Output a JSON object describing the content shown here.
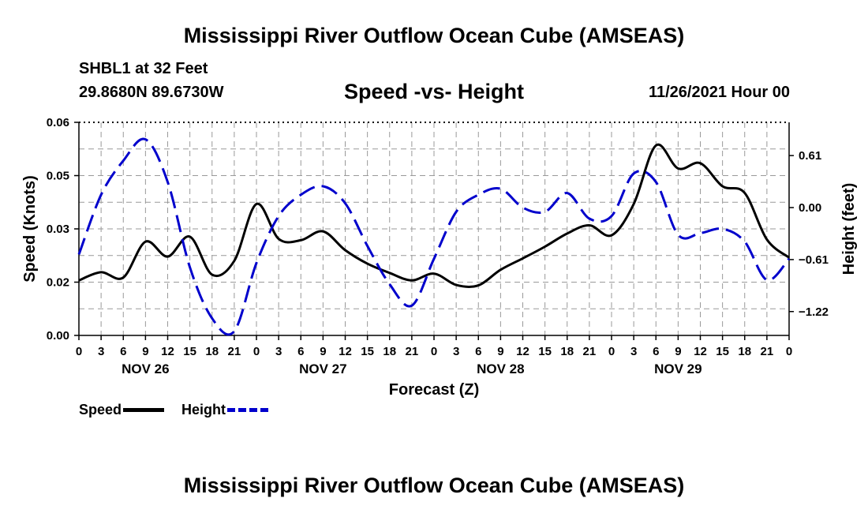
{
  "header": {
    "title": "Mississippi River Outflow Ocean Cube (AMSEAS)",
    "station": "SHBL1 at 32 Feet",
    "coordinates": "29.8680N  89.6730W",
    "subtitle": "Speed -vs- Height",
    "datetime": "11/26/2021 Hour 00"
  },
  "footer": {
    "title": "Mississippi River Outflow Ocean Cube (AMSEAS)"
  },
  "legend": {
    "speed_label": "Speed",
    "height_label": "Height"
  },
  "colors": {
    "speed": "#000000",
    "height": "#0000cc",
    "grid": "#999999"
  },
  "chart_data": {
    "type": "line",
    "title": "Speed -vs- Height",
    "xlabel": "Forecast (Z)",
    "ylabel": "Speed (Knots)",
    "y2label": "Height (feet)",
    "xlim": [
      0,
      96
    ],
    "ylim": [
      0,
      0.06
    ],
    "y2lim": [
      -1.5,
      1.0
    ],
    "yticks": [
      {
        "value": 0.0,
        "label": "0.00"
      },
      {
        "value": 0.015,
        "label": "0.02"
      },
      {
        "value": 0.03,
        "label": "0.03"
      },
      {
        "value": 0.045,
        "label": "0.05"
      },
      {
        "value": 0.06,
        "label": "0.06"
      }
    ],
    "y2ticks": [
      {
        "value": 0.61,
        "label": "0.61"
      },
      {
        "value": 0.0,
        "label": "0.00"
      },
      {
        "value": -0.61,
        "label": "−0.61"
      },
      {
        "value": -1.22,
        "label": "−1.22"
      }
    ],
    "xticks": [
      {
        "hour": 0,
        "label": "0"
      },
      {
        "hour": 3,
        "label": "3"
      },
      {
        "hour": 6,
        "label": "6"
      },
      {
        "hour": 9,
        "label": "9"
      },
      {
        "hour": 12,
        "label": "12"
      },
      {
        "hour": 15,
        "label": "15"
      },
      {
        "hour": 18,
        "label": "18"
      },
      {
        "hour": 21,
        "label": "21"
      },
      {
        "hour": 24,
        "label": "0"
      },
      {
        "hour": 27,
        "label": "3"
      },
      {
        "hour": 30,
        "label": "6"
      },
      {
        "hour": 33,
        "label": "9"
      },
      {
        "hour": 36,
        "label": "12"
      },
      {
        "hour": 39,
        "label": "15"
      },
      {
        "hour": 42,
        "label": "18"
      },
      {
        "hour": 45,
        "label": "21"
      },
      {
        "hour": 48,
        "label": "0"
      },
      {
        "hour": 51,
        "label": "3"
      },
      {
        "hour": 54,
        "label": "6"
      },
      {
        "hour": 57,
        "label": "9"
      },
      {
        "hour": 60,
        "label": "12"
      },
      {
        "hour": 63,
        "label": "15"
      },
      {
        "hour": 66,
        "label": "18"
      },
      {
        "hour": 69,
        "label": "21"
      },
      {
        "hour": 72,
        "label": "0"
      },
      {
        "hour": 75,
        "label": "3"
      },
      {
        "hour": 78,
        "label": "6"
      },
      {
        "hour": 81,
        "label": "9"
      },
      {
        "hour": 84,
        "label": "12"
      },
      {
        "hour": 87,
        "label": "15"
      },
      {
        "hour": 90,
        "label": "18"
      },
      {
        "hour": 93,
        "label": "21"
      },
      {
        "hour": 96,
        "label": "0"
      }
    ],
    "day_labels": [
      {
        "hour": 9,
        "label": "NOV 26"
      },
      {
        "hour": 33,
        "label": "NOV 27"
      },
      {
        "hour": 57,
        "label": "NOV 28"
      },
      {
        "hour": 81,
        "label": "NOV 29"
      }
    ],
    "series": [
      {
        "name": "Speed",
        "axis": "left",
        "style": "solid",
        "points": [
          [
            0,
            0.0155
          ],
          [
            3,
            0.0178
          ],
          [
            6,
            0.0163
          ],
          [
            9,
            0.0264
          ],
          [
            12,
            0.0222
          ],
          [
            15,
            0.0278
          ],
          [
            18,
            0.0171
          ],
          [
            21,
            0.021
          ],
          [
            24,
            0.037
          ],
          [
            27,
            0.0272
          ],
          [
            30,
            0.0268
          ],
          [
            33,
            0.0293
          ],
          [
            36,
            0.024
          ],
          [
            39,
            0.0202
          ],
          [
            42,
            0.0176
          ],
          [
            45,
            0.0155
          ],
          [
            48,
            0.0174
          ],
          [
            51,
            0.0142
          ],
          [
            54,
            0.0141
          ],
          [
            57,
            0.0185
          ],
          [
            60,
            0.0217
          ],
          [
            63,
            0.025
          ],
          [
            66,
            0.0287
          ],
          [
            69,
            0.031
          ],
          [
            72,
            0.0282
          ],
          [
            75,
            0.037
          ],
          [
            78,
            0.0535
          ],
          [
            81,
            0.047
          ],
          [
            84,
            0.0485
          ],
          [
            87,
            0.042
          ],
          [
            90,
            0.0401
          ],
          [
            93,
            0.027
          ],
          [
            96,
            0.0219
          ]
        ]
      },
      {
        "name": "Height",
        "axis": "right",
        "style": "dashed",
        "points": [
          [
            0,
            -0.55
          ],
          [
            3,
            0.15
          ],
          [
            6,
            0.55
          ],
          [
            9,
            0.8
          ],
          [
            12,
            0.3
          ],
          [
            15,
            -0.7
          ],
          [
            18,
            -1.3
          ],
          [
            21,
            -1.45
          ],
          [
            24,
            -0.65
          ],
          [
            27,
            -0.1
          ],
          [
            30,
            0.15
          ],
          [
            33,
            0.25
          ],
          [
            36,
            0.05
          ],
          [
            39,
            -0.45
          ],
          [
            42,
            -0.9
          ],
          [
            45,
            -1.15
          ],
          [
            48,
            -0.6
          ],
          [
            51,
            -0.05
          ],
          [
            54,
            0.15
          ],
          [
            57,
            0.22
          ],
          [
            60,
            0.0
          ],
          [
            63,
            -0.05
          ],
          [
            66,
            0.17
          ],
          [
            69,
            -0.13
          ],
          [
            72,
            -0.1
          ],
          [
            75,
            0.4
          ],
          [
            78,
            0.3
          ],
          [
            81,
            -0.32
          ],
          [
            84,
            -0.3
          ],
          [
            87,
            -0.25
          ],
          [
            90,
            -0.4
          ],
          [
            93,
            -0.85
          ],
          [
            96,
            -0.6
          ]
        ]
      }
    ]
  }
}
